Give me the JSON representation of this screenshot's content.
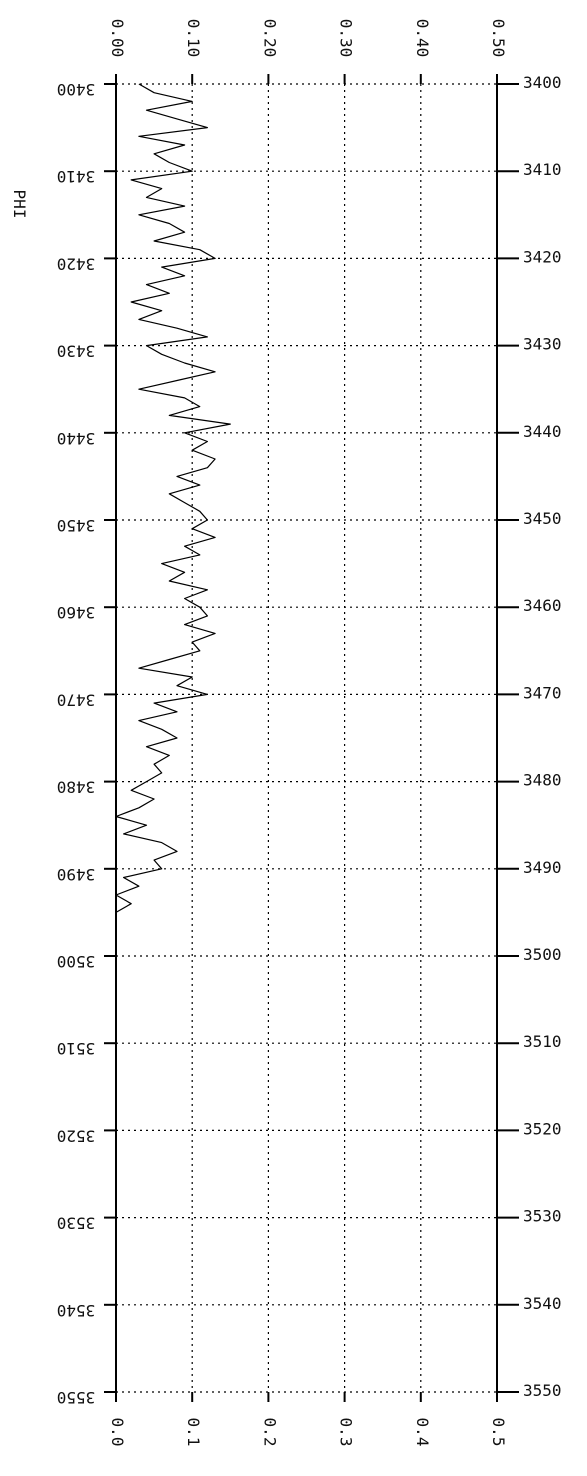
{
  "chart_data": {
    "type": "line",
    "orientation": "depth-vertical",
    "title": "",
    "xlabel": "PHI",
    "ylabel": "",
    "xlim": [
      0,
      0.5
    ],
    "ylim": [
      3400,
      3550
    ],
    "grid": true,
    "top_tick_labels": [
      "0.00",
      "0.10",
      "0.20",
      "0.30",
      "0.40",
      "0.50"
    ],
    "bottom_tick_labels": [
      "0.0",
      "0.1",
      "0.2",
      "0.3",
      "0.4",
      "0.5"
    ],
    "depth_ticks": [
      3400,
      3410,
      3420,
      3430,
      3440,
      3450,
      3460,
      3470,
      3480,
      3490,
      3500,
      3510,
      3520,
      3530,
      3540,
      3550
    ],
    "right_tick_labels": [
      "3400",
      "3410",
      "3420",
      "3430",
      "3440",
      "3450",
      "3460",
      "3470",
      "3480",
      "3490",
      "3500",
      "3510",
      "3520",
      "3530",
      "3540",
      "3550"
    ],
    "left_tick_labels": [
      "3400",
      "3410",
      "3420",
      "3430",
      "3440",
      "3450",
      "3460",
      "3470",
      "3480",
      "3490",
      "3500",
      "3510",
      "3520",
      "3530",
      "3540",
      "3550"
    ],
    "series": [
      {
        "depth": [
          3400,
          3401,
          3402,
          3403,
          3404,
          3405,
          3406,
          3407,
          3408,
          3409,
          3410,
          3411,
          3412,
          3413,
          3414,
          3415,
          3416,
          3417,
          3418,
          3419,
          3420,
          3421,
          3422,
          3423,
          3424,
          3425,
          3426,
          3427,
          3428,
          3429,
          3430,
          3431,
          3432,
          3433,
          3434,
          3435,
          3436,
          3437,
          3438,
          3439,
          3440,
          3441,
          3442,
          3443,
          3444,
          3445,
          3446,
          3447,
          3448,
          3449,
          3450,
          3451,
          3452,
          3453,
          3454,
          3455,
          3456,
          3457,
          3458,
          3459,
          3460,
          3461,
          3462,
          3463,
          3464,
          3465,
          3466,
          3467,
          3468,
          3469,
          3470,
          3471,
          3472,
          3473,
          3474,
          3475,
          3476,
          3477,
          3478,
          3479,
          3480,
          3481,
          3482,
          3483,
          3484,
          3485,
          3486,
          3487,
          3488,
          3489,
          3490,
          3491,
          3492,
          3493,
          3494,
          3495
        ],
        "values": [
          0.03,
          0.05,
          0.1,
          0.04,
          0.08,
          0.12,
          0.03,
          0.09,
          0.05,
          0.07,
          0.1,
          0.02,
          0.06,
          0.04,
          0.09,
          0.03,
          0.07,
          0.09,
          0.05,
          0.11,
          0.13,
          0.06,
          0.09,
          0.04,
          0.07,
          0.02,
          0.06,
          0.03,
          0.08,
          0.12,
          0.04,
          0.06,
          0.09,
          0.13,
          0.08,
          0.03,
          0.09,
          0.11,
          0.07,
          0.15,
          0.09,
          0.12,
          0.1,
          0.13,
          0.12,
          0.08,
          0.11,
          0.07,
          0.09,
          0.11,
          0.12,
          0.1,
          0.13,
          0.09,
          0.11,
          0.06,
          0.09,
          0.07,
          0.12,
          0.09,
          0.11,
          0.12,
          0.09,
          0.13,
          0.1,
          0.11,
          0.07,
          0.03,
          0.1,
          0.08,
          0.12,
          0.05,
          0.08,
          0.03,
          0.06,
          0.08,
          0.04,
          0.07,
          0.05,
          0.06,
          0.04,
          0.02,
          0.05,
          0.03,
          0.0,
          0.04,
          0.01,
          0.06,
          0.08,
          0.05,
          0.06,
          0.01,
          0.03,
          0.0,
          0.02,
          0.0
        ]
      }
    ]
  }
}
